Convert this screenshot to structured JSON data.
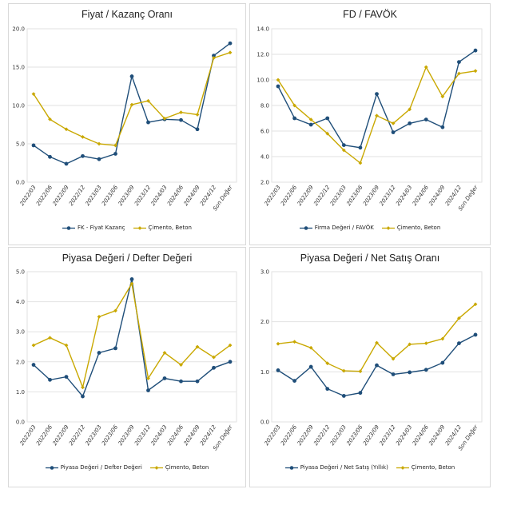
{
  "colors": {
    "company": "#1f4e79",
    "sector": "#c9a800",
    "grid": "#e2e2e2",
    "axis": "#bfbfbf"
  },
  "chart_data": [
    {
      "type": "line",
      "title": "Fiyat / Kazanç Oranı",
      "categories": [
        "2022/03",
        "2022/06",
        "2022/09",
        "2022/12",
        "2023/03",
        "2023/06",
        "2023/09",
        "2023/12",
        "2024/03",
        "2024/06",
        "2024/09",
        "2024/12",
        "Son Değer"
      ],
      "ylim": [
        0,
        20
      ],
      "yticks": [
        "0.0",
        "5.0",
        "10.0",
        "15.0",
        "20.0"
      ],
      "grid": true,
      "legend_position": "bottom",
      "series": [
        {
          "name": "FK - Fiyat Kazanç",
          "values": [
            4.8,
            3.3,
            2.4,
            3.4,
            3.0,
            3.7,
            13.8,
            7.8,
            8.2,
            8.1,
            6.9,
            16.5,
            18.1
          ]
        },
        {
          "name": "Çimento, Beton",
          "values": [
            11.5,
            8.2,
            6.9,
            5.9,
            5.0,
            4.8,
            10.1,
            10.6,
            8.3,
            9.1,
            8.8,
            16.2,
            16.9
          ]
        }
      ]
    },
    {
      "type": "line",
      "title": "FD / FAVÖK",
      "categories": [
        "2022/03",
        "2022/06",
        "2022/09",
        "2022/12",
        "2023/03",
        "2023/06",
        "2023/09",
        "2023/12",
        "2024/03",
        "2024/06",
        "2024/09",
        "2024/12",
        "Son Değer"
      ],
      "ylim": [
        2,
        14
      ],
      "yticks": [
        "2.0",
        "4.0",
        "6.0",
        "8.0",
        "10.0",
        "12.0",
        "14.0"
      ],
      "grid": true,
      "legend_position": "bottom",
      "series": [
        {
          "name": "Firma Değeri / FAVÖK",
          "values": [
            9.5,
            7.0,
            6.5,
            7.0,
            4.9,
            4.7,
            8.9,
            5.9,
            6.6,
            6.9,
            6.3,
            11.4,
            12.3
          ]
        },
        {
          "name": "Çimento, Beton",
          "values": [
            10.0,
            8.0,
            6.9,
            5.8,
            4.5,
            3.5,
            7.2,
            6.6,
            7.7,
            11.0,
            8.7,
            10.5,
            10.7
          ]
        }
      ]
    },
    {
      "type": "line",
      "title": "Piyasa Değeri / Defter Değeri",
      "categories": [
        "2022/03",
        "2022/06",
        "2022/09",
        "2022/12",
        "2023/03",
        "2023/06",
        "2023/09",
        "2023/12",
        "2024/03",
        "2024/06",
        "2024/09",
        "2024/12",
        "Son Değer"
      ],
      "ylim": [
        0,
        5
      ],
      "yticks": [
        "0.0",
        "1.0",
        "2.0",
        "3.0",
        "4.0",
        "5.0"
      ],
      "grid": true,
      "legend_position": "bottom",
      "series": [
        {
          "name": "Piyasa Değeri / Defter Değeri",
          "values": [
            1.9,
            1.4,
            1.5,
            0.85,
            2.3,
            2.45,
            4.75,
            1.05,
            1.45,
            1.35,
            1.35,
            1.8,
            2.0
          ]
        },
        {
          "name": "Çimento, Beton",
          "values": [
            2.55,
            2.8,
            2.55,
            1.15,
            3.5,
            3.7,
            4.6,
            1.45,
            2.3,
            1.9,
            2.5,
            2.15,
            2.55
          ]
        }
      ]
    },
    {
      "type": "line",
      "title": "Piyasa Değeri / Net Satış Oranı",
      "categories": [
        "2022/03",
        "2022/06",
        "2022/09",
        "2022/12",
        "2023/03",
        "2023/06",
        "2023/09",
        "2023/12",
        "2024/03",
        "2024/06",
        "2024/09",
        "2024/12",
        "Son Değer"
      ],
      "ylim": [
        0,
        3
      ],
      "yticks": [
        "0.0",
        "1.0",
        "2.0",
        "3.0"
      ],
      "grid": true,
      "legend_position": "bottom",
      "series": [
        {
          "name": "Piyasa Değeri / Net Satış (Yıllık)",
          "values": [
            1.03,
            0.82,
            1.1,
            0.66,
            0.52,
            0.58,
            1.13,
            0.95,
            0.99,
            1.04,
            1.18,
            1.57,
            1.74
          ]
        },
        {
          "name": "Çimento, Beton",
          "values": [
            1.56,
            1.6,
            1.48,
            1.17,
            1.02,
            1.01,
            1.58,
            1.26,
            1.55,
            1.57,
            1.66,
            2.07,
            2.35
          ]
        }
      ]
    }
  ]
}
